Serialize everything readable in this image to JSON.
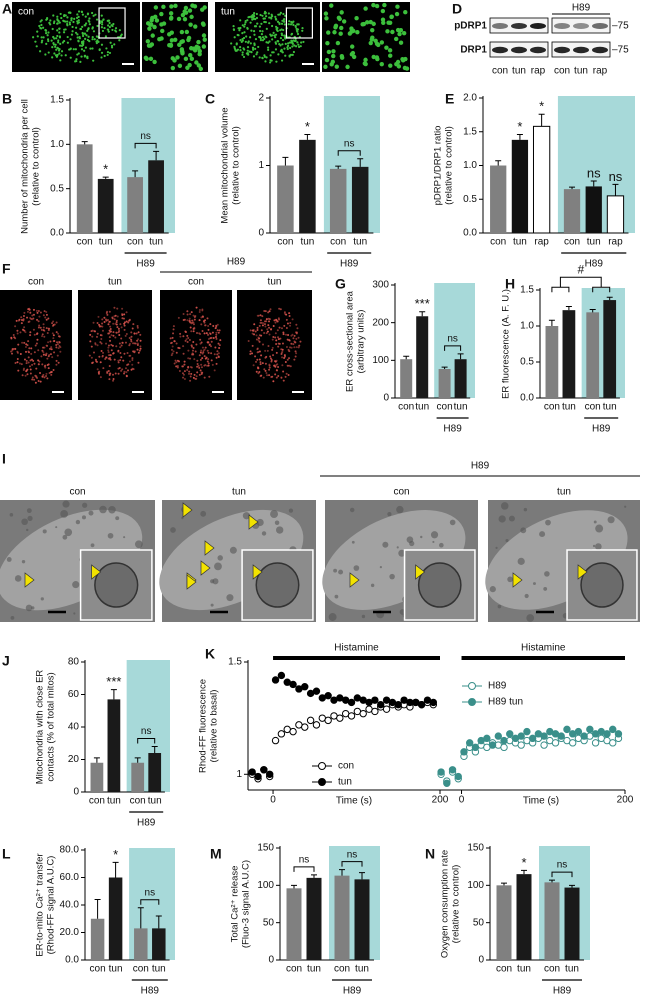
{
  "figure": {
    "A": {
      "letter": "A",
      "labels": [
        "con",
        "tun"
      ]
    },
    "D": {
      "letter": "D",
      "rows": [
        "pDRP1",
        "DRP1"
      ],
      "markers": [
        "–75",
        "–75"
      ],
      "lanes": [
        "con",
        "tun",
        "rap",
        "con",
        "tun",
        "rap"
      ],
      "group": "H89"
    },
    "F": {
      "letter": "F",
      "labels": [
        "con",
        "tun",
        "con",
        "tun"
      ],
      "group": "H89"
    },
    "I": {
      "letter": "I",
      "labels": [
        "con",
        "tun",
        "con",
        "tun"
      ],
      "group": "H89"
    }
  },
  "chart_data": [
    {
      "letter": "B",
      "type": "bar",
      "ylabel": [
        "Number of mitochondria per cell",
        "(relative to control)"
      ],
      "categories": [
        "con",
        "tun",
        "con",
        "tun"
      ],
      "values": [
        1.0,
        0.61,
        0.63,
        0.82
      ],
      "errors": [
        0.03,
        0.02,
        0.07,
        0.1
      ],
      "colors": [
        "#808080",
        "#1a1a1a",
        "#808080",
        "#1a1a1a"
      ],
      "ylim": [
        0,
        1.5
      ],
      "yticks": [
        {
          "value": 0,
          "label": "0.0"
        },
        0.5,
        {
          "value": 1,
          "label": "1.0"
        },
        1.5
      ],
      "stars": [
        null,
        "*",
        null,
        null
      ],
      "brackets": [
        {
          "text": "ns",
          "from": 2,
          "to": 3
        }
      ],
      "group": {
        "label": "H89",
        "from": 2
      },
      "shade": "#a7d9d9"
    },
    {
      "letter": "C",
      "type": "bar",
      "ylabel": [
        "Mean mitochondrial volume",
        "(relative to control)"
      ],
      "categories": [
        "con",
        "tun",
        "con",
        "tun"
      ],
      "values": [
        1.0,
        1.38,
        0.95,
        0.98
      ],
      "errors": [
        0.12,
        0.08,
        0.04,
        0.12
      ],
      "colors": [
        "#808080",
        "#1a1a1a",
        "#808080",
        "#1a1a1a"
      ],
      "ylim": [
        0,
        2
      ],
      "yticks": [
        0,
        1,
        2
      ],
      "stars": [
        null,
        "*",
        null,
        null
      ],
      "brackets": [
        {
          "text": "ns",
          "from": 2,
          "to": 3
        }
      ],
      "group": {
        "label": "H89",
        "from": 2
      },
      "shade": "#a7d9d9"
    },
    {
      "letter": "E",
      "type": "bar",
      "ylabel": [
        "pDRP1/DRP1 ratio",
        "(relative to control)"
      ],
      "categories": [
        "con",
        "tun",
        "rap",
        "con",
        "tun",
        "rap"
      ],
      "values": [
        1.0,
        1.38,
        1.58,
        0.65,
        0.69,
        0.55
      ],
      "errors": [
        0.07,
        0.08,
        0.18,
        0.03,
        0.08,
        0.17
      ],
      "colors": [
        "#808080",
        "#111111",
        "#ffffff",
        "#808080",
        "#111111",
        "#ffffff"
      ],
      "ylim": [
        0,
        2
      ],
      "yticks": [
        {
          "value": 0,
          "label": "0.0"
        },
        0.5,
        {
          "value": 1,
          "label": "1.0"
        },
        1.5,
        {
          "value": 2,
          "label": "2.0"
        }
      ],
      "stars": [
        null,
        "*",
        "*",
        null,
        "ns",
        "ns"
      ],
      "group": {
        "label": "H89",
        "from": 3
      },
      "shade": "#a7d9d9"
    },
    {
      "letter": "G",
      "type": "bar",
      "ylabel": [
        "ER cross-sectional area",
        "(arbitrary units)"
      ],
      "categories": [
        "con",
        "tun",
        "con",
        "tun"
      ],
      "values": [
        103,
        217,
        77,
        103
      ],
      "errors": [
        8,
        12,
        5,
        14
      ],
      "colors": [
        "#808080",
        "#1a1a1a",
        "#808080",
        "#1a1a1a"
      ],
      "ylim": [
        0,
        300
      ],
      "yticks": [
        0,
        100,
        200,
        300
      ],
      "stars": [
        null,
        "***",
        null,
        null
      ],
      "brackets": [
        {
          "text": "ns",
          "from": 2,
          "to": 3
        }
      ],
      "group": {
        "label": "H89",
        "from": 2
      },
      "shade": "#a7d9d9"
    },
    {
      "letter": "H",
      "type": "bar",
      "ylabel": [
        "ER fluorescence (A. F. U.)"
      ],
      "categories": [
        "con",
        "tun",
        "con",
        "tun"
      ],
      "values": [
        1.0,
        1.22,
        1.19,
        1.36
      ],
      "errors": [
        0.08,
        0.05,
        0.04,
        0.04
      ],
      "colors": [
        "#808080",
        "#1a1a1a",
        "#808080",
        "#1a1a1a"
      ],
      "ylim": [
        0,
        1.5
      ],
      "yticks": [
        {
          "value": 0,
          "label": "0.0"
        },
        0.5,
        {
          "value": 1,
          "label": "1.0"
        },
        1.5
      ],
      "group_bracket": {
        "text": "#"
      },
      "group": {
        "label": "H89",
        "from": 2
      },
      "shade": "#a7d9d9"
    },
    {
      "letter": "J",
      "type": "bar",
      "ylabel": [
        "Mitochondria with close ER",
        "contacts (% of total mitos)"
      ],
      "categories": [
        "con",
        "tun",
        "con",
        "tun"
      ],
      "values": [
        18,
        57,
        18,
        24
      ],
      "errors": [
        3,
        6,
        3,
        4
      ],
      "colors": [
        "#808080",
        "#1a1a1a",
        "#808080",
        "#1a1a1a"
      ],
      "ylim": [
        0,
        80
      ],
      "yticks": [
        0,
        20,
        40,
        60,
        80
      ],
      "stars": [
        null,
        "***",
        null,
        null
      ],
      "brackets": [
        {
          "text": "ns",
          "from": 2,
          "to": 3
        }
      ],
      "group": {
        "label": "H89",
        "from": 2
      },
      "shade": "#a7d9d9"
    },
    {
      "letter": "K",
      "type": "scatter",
      "ylabel": [
        "Rhod-FF fluorescence",
        "(relative to basal)"
      ],
      "xlabel": "Time (s)",
      "xlim": [
        -30,
        200
      ],
      "xticks": [
        0,
        200
      ],
      "ylim": [
        0.93,
        1.5
      ],
      "yticks": [
        1,
        1.5
      ],
      "x": [
        -25,
        -18,
        -11,
        -4,
        3,
        10,
        17,
        24,
        31,
        38,
        45,
        52,
        59,
        66,
        73,
        80,
        87,
        94,
        101,
        108,
        115,
        122,
        129,
        136,
        143,
        150,
        157,
        164,
        171,
        178,
        185,
        192
      ],
      "panels": [
        {
          "bar_label": "Histamine",
          "series": [
            {
              "name": "con",
              "color": "#000000",
              "filled": false,
              "values": [
                1.0,
                0.98,
                1.02,
                0.99,
                1.15,
                1.18,
                1.2,
                1.19,
                1.22,
                1.21,
                1.24,
                1.22,
                1.25,
                1.24,
                1.26,
                1.25,
                1.27,
                1.26,
                1.28,
                1.27,
                1.29,
                1.28,
                1.3,
                1.29,
                1.31,
                1.3,
                1.31,
                1.3,
                1.32,
                1.31,
                1.32,
                1.31
              ]
            },
            {
              "name": "tun",
              "color": "#000000",
              "filled": true,
              "values": [
                1.01,
                0.99,
                1.02,
                1.0,
                1.42,
                1.44,
                1.41,
                1.4,
                1.38,
                1.39,
                1.36,
                1.37,
                1.34,
                1.35,
                1.33,
                1.34,
                1.33,
                1.32,
                1.34,
                1.33,
                1.32,
                1.33,
                1.31,
                1.33,
                1.32,
                1.31,
                1.33,
                1.32,
                1.32,
                1.31,
                1.33,
                1.32
              ]
            }
          ]
        },
        {
          "bar_label": "Histamine",
          "series": [
            {
              "name": "H89",
              "color": "#3a8f8a",
              "filled": false,
              "values": [
                1.0,
                0.97,
                1.01,
                0.98,
                1.08,
                1.12,
                1.1,
                1.13,
                1.12,
                1.14,
                1.13,
                1.12,
                1.15,
                1.14,
                1.13,
                1.15,
                1.14,
                1.16,
                1.13,
                1.15,
                1.14,
                1.16,
                1.15,
                1.14,
                1.16,
                1.15,
                1.17,
                1.14,
                1.16,
                1.15,
                1.14,
                1.16
              ]
            },
            {
              "name": "H89 tun",
              "color": "#3a8f8a",
              "filled": true,
              "values": [
                1.01,
                0.96,
                1.02,
                0.99,
                1.1,
                1.14,
                1.12,
                1.15,
                1.16,
                1.13,
                1.17,
                1.15,
                1.18,
                1.16,
                1.17,
                1.19,
                1.16,
                1.18,
                1.17,
                1.19,
                1.18,
                1.17,
                1.2,
                1.18,
                1.19,
                1.17,
                1.2,
                1.18,
                1.19,
                1.18,
                1.2,
                1.18
              ]
            }
          ]
        }
      ]
    },
    {
      "letter": "L",
      "type": "bar",
      "ylabel": [
        "ER-to-mito Ca²⁺ transfer",
        "(Rhod-FF signal A.U.C)"
      ],
      "categories": [
        "con",
        "tun",
        "con",
        "tun"
      ],
      "values": [
        30,
        60,
        23,
        23
      ],
      "errors": [
        14,
        11,
        15,
        9
      ],
      "colors": [
        "#808080",
        "#1a1a1a",
        "#808080",
        "#1a1a1a"
      ],
      "ylim": [
        0,
        80
      ],
      "yticks": [
        {
          "value": 0,
          "label": "0.0"
        },
        {
          "value": 20,
          "label": "20.0"
        },
        {
          "value": 40,
          "label": "40.0"
        },
        {
          "value": 60,
          "label": "60.0"
        },
        {
          "value": 80,
          "label": "80.0"
        }
      ],
      "stars": [
        null,
        "*",
        null,
        null
      ],
      "brackets": [
        {
          "text": "ns",
          "from": 2,
          "to": 3
        }
      ],
      "group": {
        "label": "H89",
        "from": 2
      },
      "shade": "#a7d9d9"
    },
    {
      "letter": "M",
      "type": "bar",
      "ylabel": [
        "Total Ca²⁺ release",
        "(Fluo-3 signal A.U.C)"
      ],
      "categories": [
        "con",
        "tun",
        "con",
        "tun"
      ],
      "values": [
        96,
        110,
        113,
        108
      ],
      "errors": [
        4,
        4,
        8,
        9
      ],
      "colors": [
        "#808080",
        "#1a1a1a",
        "#808080",
        "#1a1a1a"
      ],
      "ylim": [
        0,
        150
      ],
      "yticks": [
        0,
        50,
        100,
        150
      ],
      "brackets": [
        {
          "text": "ns",
          "from": 0,
          "to": 1
        },
        {
          "text": "ns",
          "from": 2,
          "to": 3
        }
      ],
      "group": {
        "label": "H89",
        "from": 2
      },
      "shade": "#a7d9d9"
    },
    {
      "letter": "N",
      "type": "bar",
      "ylabel": [
        "Oxygen consumption rate",
        "(relative to control)"
      ],
      "categories": [
        "con",
        "tun",
        "con",
        "tun"
      ],
      "values": [
        100,
        115,
        104,
        97
      ],
      "errors": [
        3,
        5,
        3,
        3
      ],
      "colors": [
        "#808080",
        "#1a1a1a",
        "#808080",
        "#1a1a1a"
      ],
      "ylim": [
        0,
        150
      ],
      "yticks": [
        0,
        50,
        100,
        150
      ],
      "stars": [
        null,
        "*",
        null,
        null
      ],
      "brackets": [
        {
          "text": "ns",
          "from": 2,
          "to": 3
        }
      ],
      "group": {
        "label": "H89",
        "from": 2
      },
      "shade": "#a7d9d9"
    }
  ]
}
